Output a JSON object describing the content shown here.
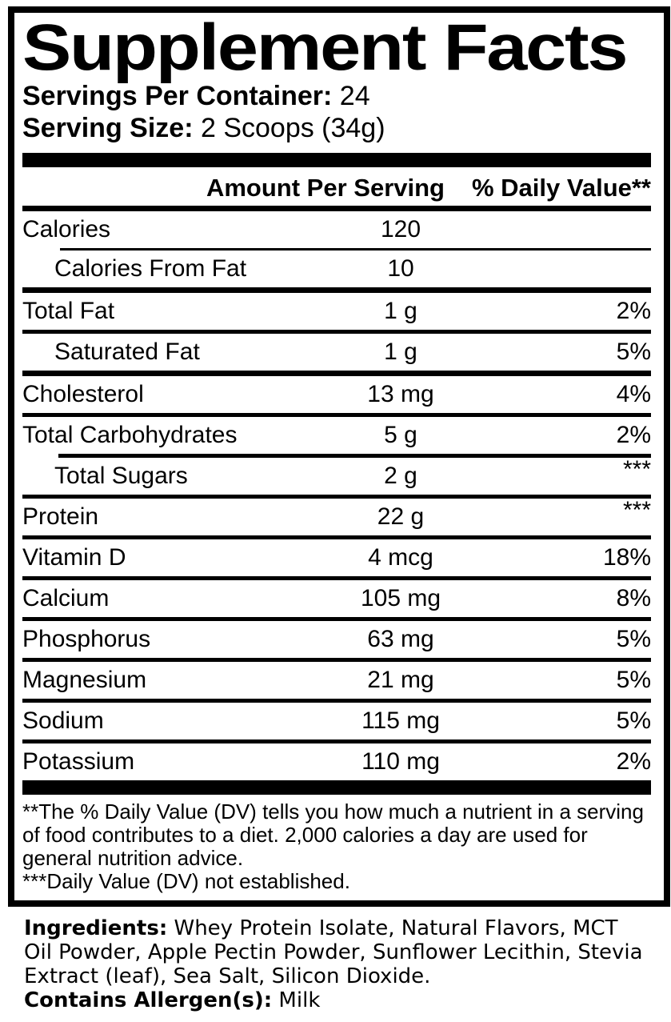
{
  "label": {
    "title": "Supplement Facts",
    "servings_per_container_label": "Servings Per Container:",
    "servings_per_container_value": " 24",
    "serving_size_label": "Serving Size:",
    "serving_size_value": " 2 Scoops (34g)",
    "columns": {
      "amount_header": "Amount Per Serving",
      "dv_header": "% Daily Value**"
    },
    "rows": [
      {
        "name": "Calories",
        "amount": "120",
        "dv": "",
        "indent": false,
        "rule": "none"
      },
      {
        "name": "Calories From Fat",
        "amount": "10",
        "dv": "",
        "indent": true,
        "rule": "thin-indent"
      },
      {
        "name": "Total Fat",
        "amount": "1 g",
        "dv": "2%",
        "indent": false,
        "rule": "thick"
      },
      {
        "name": "Saturated Fat",
        "amount": "1 g",
        "dv": "5%",
        "indent": true,
        "rule": "normal"
      },
      {
        "name": "Cholesterol",
        "amount": "13 mg",
        "dv": "4%",
        "indent": false,
        "rule": "thick"
      },
      {
        "name": "Total Carbohydrates",
        "amount": "5 g",
        "dv": "2%",
        "indent": false,
        "rule": "normal"
      },
      {
        "name": "Total Sugars",
        "amount": "2 g",
        "dv": "***",
        "indent": true,
        "rule": "normal-indent"
      },
      {
        "name": "Protein",
        "amount": "22 g",
        "dv": "***",
        "indent": false,
        "rule": "normal"
      },
      {
        "name": "Vitamin D",
        "amount": "4 mcg",
        "dv": "18%",
        "indent": false,
        "rule": "normal"
      },
      {
        "name": "Calcium",
        "amount": "105 mg",
        "dv": "8%",
        "indent": false,
        "rule": "normal"
      },
      {
        "name": "Phosphorus",
        "amount": "63 mg",
        "dv": "5%",
        "indent": false,
        "rule": "normal"
      },
      {
        "name": "Magnesium",
        "amount": "21 mg",
        "dv": "5%",
        "indent": false,
        "rule": "normal"
      },
      {
        "name": "Sodium",
        "amount": "115 mg",
        "dv": "5%",
        "indent": false,
        "rule": "normal"
      },
      {
        "name": "Potassium",
        "amount": "110 mg",
        "dv": "2%",
        "indent": false,
        "rule": "normal"
      }
    ],
    "footnotes": {
      "daily_value_note": "**The % Daily Value (DV) tells you how much a nutrient in a serving of food contributes to a diet. 2,000 calories a day are used for general nutrition advice.",
      "not_established_note": "***Daily Value (DV) not established."
    },
    "ingredients_label": "Ingredients:",
    "ingredients_text": " Whey Protein Isolate, Natural Flavors, MCT Oil Powder, Apple Pectin Powder, Sunflower Lecithin, Stevia Extract (leaf), Sea Salt, Silicon Dioxide.",
    "allergen_label": "Contains Allergen(s):",
    "allergen_value": " Milk",
    "colors": {
      "ink": "#000000",
      "paper": "#ffffff"
    }
  }
}
